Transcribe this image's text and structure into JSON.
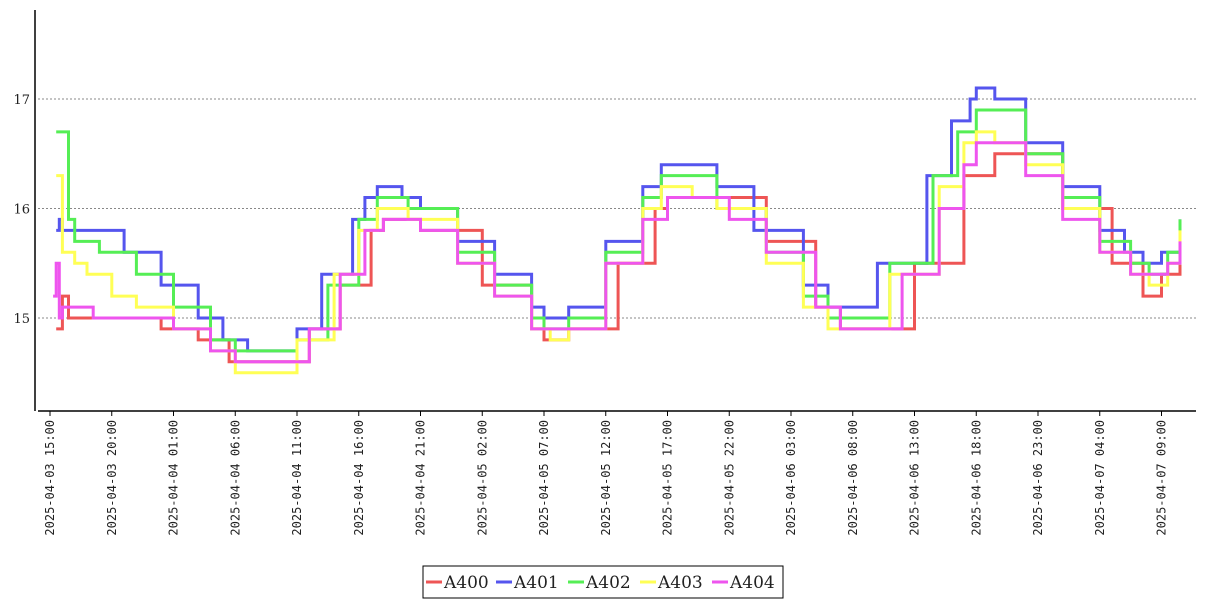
{
  "chart_data": {
    "type": "line",
    "title": "",
    "xlabel": "",
    "ylabel": "",
    "ylim": [
      14.2,
      17.8
    ],
    "x_range": [
      "2025-04-03 14:00",
      "2025-04-07 11:30"
    ],
    "y_ticks": [
      "15",
      "16",
      "17"
    ],
    "grid": "horizontal dotted",
    "legend": "bottom-center",
    "x_tick_labels": [
      "2025-04-03 15:00",
      "2025-04-03 20:00",
      "2025-04-04 01:00",
      "2025-04-04 06:00",
      "2025-04-04 11:00",
      "2025-04-04 16:00",
      "2025-04-04 21:00",
      "2025-04-05 02:00",
      "2025-04-05 07:00",
      "2025-04-05 12:00",
      "2025-04-05 17:00",
      "2025-04-05 22:00",
      "2025-04-06 03:00",
      "2025-04-06 08:00",
      "2025-04-06 13:00",
      "2025-04-06 18:00",
      "2025-04-06 23:00",
      "2025-04-07 04:00",
      "2025-04-07 09:00"
    ],
    "series": [
      {
        "name": "A400",
        "color": "#ee5555",
        "points": [
          [
            "2025-04-03 15:30",
            14.9
          ],
          [
            "2025-04-03 16:00",
            15.2
          ],
          [
            "2025-04-03 16:30",
            15.0
          ],
          [
            "2025-04-04 00:00",
            14.9
          ],
          [
            "2025-04-04 03:00",
            14.8
          ],
          [
            "2025-04-04 05:30",
            14.6
          ],
          [
            "2025-04-04 09:00",
            14.6
          ],
          [
            "2025-04-04 12:00",
            14.9
          ],
          [
            "2025-04-04 14:30",
            15.3
          ],
          [
            "2025-04-04 17:00",
            15.8
          ],
          [
            "2025-04-04 18:00",
            15.9
          ],
          [
            "2025-04-04 21:00",
            15.8
          ],
          [
            "2025-04-05 02:00",
            15.3
          ],
          [
            "2025-04-05 06:00",
            14.9
          ],
          [
            "2025-04-05 07:00",
            14.8
          ],
          [
            "2025-04-05 09:00",
            14.9
          ],
          [
            "2025-04-05 13:00",
            15.5
          ],
          [
            "2025-04-05 16:00",
            16.0
          ],
          [
            "2025-04-05 17:00",
            16.1
          ],
          [
            "2025-04-05 21:00",
            16.1
          ],
          [
            "2025-04-06 01:00",
            15.7
          ],
          [
            "2025-04-06 05:00",
            15.1
          ],
          [
            "2025-04-06 07:00",
            14.9
          ],
          [
            "2025-04-06 09:00",
            14.9
          ],
          [
            "2025-04-06 13:00",
            15.5
          ],
          [
            "2025-04-06 17:00",
            16.3
          ],
          [
            "2025-04-06 19:30",
            16.5
          ],
          [
            "2025-04-06 21:30",
            16.5
          ],
          [
            "2025-04-07 01:00",
            16.0
          ],
          [
            "2025-04-07 05:00",
            15.5
          ],
          [
            "2025-04-07 07:30",
            15.2
          ],
          [
            "2025-04-07 09:00",
            15.4
          ],
          [
            "2025-04-07 10:30",
            15.7
          ]
        ]
      },
      {
        "name": "A401",
        "color": "#5555ee",
        "points": [
          [
            "2025-04-03 15:30",
            15.8
          ],
          [
            "2025-04-03 15:45",
            15.9
          ],
          [
            "2025-04-03 16:00",
            15.8
          ],
          [
            "2025-04-03 18:00",
            15.8
          ],
          [
            "2025-04-03 21:00",
            15.6
          ],
          [
            "2025-04-04 00:00",
            15.3
          ],
          [
            "2025-04-04 03:00",
            15.0
          ],
          [
            "2025-04-04 05:00",
            14.8
          ],
          [
            "2025-04-04 07:00",
            14.7
          ],
          [
            "2025-04-04 09:00",
            14.7
          ],
          [
            "2025-04-04 11:00",
            14.9
          ],
          [
            "2025-04-04 13:00",
            15.4
          ],
          [
            "2025-04-04 15:30",
            15.9
          ],
          [
            "2025-04-04 16:30",
            16.1
          ],
          [
            "2025-04-04 17:30",
            16.2
          ],
          [
            "2025-04-04 19:30",
            16.1
          ],
          [
            "2025-04-04 21:00",
            16.0
          ],
          [
            "2025-04-05 00:00",
            15.7
          ],
          [
            "2025-04-05 03:00",
            15.4
          ],
          [
            "2025-04-05 06:00",
            15.1
          ],
          [
            "2025-04-05 07:00",
            15.0
          ],
          [
            "2025-04-05 09:00",
            15.1
          ],
          [
            "2025-04-05 12:00",
            15.7
          ],
          [
            "2025-04-05 15:00",
            16.2
          ],
          [
            "2025-04-05 16:30",
            16.4
          ],
          [
            "2025-04-05 19:00",
            16.4
          ],
          [
            "2025-04-05 21:00",
            16.2
          ],
          [
            "2025-04-06 00:00",
            15.8
          ],
          [
            "2025-04-06 04:00",
            15.3
          ],
          [
            "2025-04-06 06:00",
            15.1
          ],
          [
            "2025-04-06 07:30",
            15.1
          ],
          [
            "2025-04-06 10:00",
            15.5
          ],
          [
            "2025-04-06 14:00",
            16.3
          ],
          [
            "2025-04-06 16:00",
            16.8
          ],
          [
            "2025-04-06 17:30",
            17.0
          ],
          [
            "2025-04-06 18:00",
            17.1
          ],
          [
            "2025-04-06 19:30",
            17.0
          ],
          [
            "2025-04-06 22:00",
            16.6
          ],
          [
            "2025-04-07 01:00",
            16.2
          ],
          [
            "2025-04-07 04:00",
            15.8
          ],
          [
            "2025-04-07 06:00",
            15.6
          ],
          [
            "2025-04-07 07:30",
            15.5
          ],
          [
            "2025-04-07 09:00",
            15.6
          ],
          [
            "2025-04-07 10:30",
            15.9
          ]
        ]
      },
      {
        "name": "A402",
        "color": "#55ee55",
        "points": [
          [
            "2025-04-03 15:30",
            16.7
          ],
          [
            "2025-04-03 16:00",
            16.7
          ],
          [
            "2025-04-03 16:30",
            15.9
          ],
          [
            "2025-04-03 17:00",
            15.7
          ],
          [
            "2025-04-03 19:00",
            15.6
          ],
          [
            "2025-04-03 22:00",
            15.4
          ],
          [
            "2025-04-04 01:00",
            15.1
          ],
          [
            "2025-04-04 04:00",
            14.8
          ],
          [
            "2025-04-04 06:00",
            14.7
          ],
          [
            "2025-04-04 09:00",
            14.7
          ],
          [
            "2025-04-04 11:00",
            14.8
          ],
          [
            "2025-04-04 13:30",
            15.3
          ],
          [
            "2025-04-04 16:00",
            15.9
          ],
          [
            "2025-04-04 17:30",
            16.1
          ],
          [
            "2025-04-04 20:00",
            16.0
          ],
          [
            "2025-04-05 00:00",
            15.6
          ],
          [
            "2025-04-05 03:00",
            15.3
          ],
          [
            "2025-04-05 06:00",
            15.0
          ],
          [
            "2025-04-05 07:00",
            14.9
          ],
          [
            "2025-04-05 09:00",
            15.0
          ],
          [
            "2025-04-05 12:00",
            15.6
          ],
          [
            "2025-04-05 15:00",
            16.1
          ],
          [
            "2025-04-05 16:30",
            16.3
          ],
          [
            "2025-04-05 18:30",
            16.3
          ],
          [
            "2025-04-05 21:00",
            16.0
          ],
          [
            "2025-04-06 01:00",
            15.6
          ],
          [
            "2025-04-06 04:00",
            15.2
          ],
          [
            "2025-04-06 06:00",
            15.0
          ],
          [
            "2025-04-06 08:00",
            15.0
          ],
          [
            "2025-04-06 11:00",
            15.5
          ],
          [
            "2025-04-06 14:30",
            16.3
          ],
          [
            "2025-04-06 16:30",
            16.7
          ],
          [
            "2025-04-06 18:00",
            16.9
          ],
          [
            "2025-04-06 19:30",
            16.9
          ],
          [
            "2025-04-06 22:00",
            16.5
          ],
          [
            "2025-04-07 01:00",
            16.1
          ],
          [
            "2025-04-07 04:00",
            15.7
          ],
          [
            "2025-04-07 06:30",
            15.5
          ],
          [
            "2025-04-07 08:00",
            15.4
          ],
          [
            "2025-04-07 09:30",
            15.6
          ],
          [
            "2025-04-07 10:30",
            15.9
          ]
        ]
      },
      {
        "name": "A403",
        "color": "#ffff55",
        "points": [
          [
            "2025-04-03 15:30",
            16.3
          ],
          [
            "2025-04-03 16:00",
            15.6
          ],
          [
            "2025-04-03 17:00",
            15.5
          ],
          [
            "2025-04-03 18:00",
            15.4
          ],
          [
            "2025-04-03 20:00",
            15.2
          ],
          [
            "2025-04-03 22:00",
            15.1
          ],
          [
            "2025-04-04 01:00",
            14.9
          ],
          [
            "2025-04-04 04:00",
            14.7
          ],
          [
            "2025-04-04 06:00",
            14.5
          ],
          [
            "2025-04-04 08:00",
            14.5
          ],
          [
            "2025-04-04 11:00",
            14.8
          ],
          [
            "2025-04-04 14:00",
            15.4
          ],
          [
            "2025-04-04 16:00",
            15.8
          ],
          [
            "2025-04-04 17:30",
            16.0
          ],
          [
            "2025-04-04 20:00",
            15.9
          ],
          [
            "2025-04-05 00:00",
            15.5
          ],
          [
            "2025-04-05 03:00",
            15.2
          ],
          [
            "2025-04-05 06:00",
            14.9
          ],
          [
            "2025-04-05 07:30",
            14.8
          ],
          [
            "2025-04-05 09:00",
            14.9
          ],
          [
            "2025-04-05 12:00",
            15.5
          ],
          [
            "2025-04-05 15:00",
            16.0
          ],
          [
            "2025-04-05 16:30",
            16.2
          ],
          [
            "2025-04-05 19:00",
            16.1
          ],
          [
            "2025-04-05 21:00",
            16.0
          ],
          [
            "2025-04-06 01:00",
            15.5
          ],
          [
            "2025-04-06 04:00",
            15.1
          ],
          [
            "2025-04-06 06:00",
            14.9
          ],
          [
            "2025-04-06 08:00",
            14.9
          ],
          [
            "2025-04-06 11:00",
            15.4
          ],
          [
            "2025-04-06 15:00",
            16.2
          ],
          [
            "2025-04-06 17:00",
            16.6
          ],
          [
            "2025-04-06 18:00",
            16.7
          ],
          [
            "2025-04-06 19:30",
            16.6
          ],
          [
            "2025-04-06 22:00",
            16.4
          ],
          [
            "2025-04-07 01:00",
            16.0
          ],
          [
            "2025-04-07 04:00",
            15.6
          ],
          [
            "2025-04-07 06:30",
            15.4
          ],
          [
            "2025-04-07 08:00",
            15.3
          ],
          [
            "2025-04-07 09:30",
            15.5
          ],
          [
            "2025-04-07 10:30",
            15.8
          ]
        ]
      },
      {
        "name": "A404",
        "color": "#ee55ee",
        "points": [
          [
            "2025-04-03 15:15",
            15.2
          ],
          [
            "2025-04-03 15:30",
            15.5
          ],
          [
            "2025-04-03 15:45",
            15.0
          ],
          [
            "2025-04-03 16:00",
            15.1
          ],
          [
            "2025-04-03 18:00",
            15.1
          ],
          [
            "2025-04-03 18:30",
            15.0
          ],
          [
            "2025-04-04 01:00",
            14.9
          ],
          [
            "2025-04-04 04:00",
            14.7
          ],
          [
            "2025-04-04 06:00",
            14.6
          ],
          [
            "2025-04-04 09:00",
            14.6
          ],
          [
            "2025-04-04 12:00",
            14.9
          ],
          [
            "2025-04-04 14:30",
            15.4
          ],
          [
            "2025-04-04 16:30",
            15.8
          ],
          [
            "2025-04-04 18:00",
            15.9
          ],
          [
            "2025-04-04 21:00",
            15.8
          ],
          [
            "2025-04-05 00:00",
            15.5
          ],
          [
            "2025-04-05 03:00",
            15.2
          ],
          [
            "2025-04-05 06:00",
            14.9
          ],
          [
            "2025-04-05 07:00",
            14.9
          ],
          [
            "2025-04-05 09:00",
            14.9
          ],
          [
            "2025-04-05 12:00",
            15.5
          ],
          [
            "2025-04-05 15:00",
            15.9
          ],
          [
            "2025-04-05 17:00",
            16.1
          ],
          [
            "2025-04-05 20:00",
            16.1
          ],
          [
            "2025-04-05 22:00",
            15.9
          ],
          [
            "2025-04-06 01:00",
            15.6
          ],
          [
            "2025-04-06 05:00",
            15.1
          ],
          [
            "2025-04-06 07:00",
            14.9
          ],
          [
            "2025-04-06 09:00",
            14.9
          ],
          [
            "2025-04-06 12:00",
            15.4
          ],
          [
            "2025-04-06 15:00",
            16.0
          ],
          [
            "2025-04-06 17:00",
            16.4
          ],
          [
            "2025-04-06 18:00",
            16.6
          ],
          [
            "2025-04-06 19:30",
            16.6
          ],
          [
            "2025-04-06 22:00",
            16.3
          ],
          [
            "2025-04-07 01:00",
            15.9
          ],
          [
            "2025-04-07 04:00",
            15.6
          ],
          [
            "2025-04-07 06:30",
            15.4
          ],
          [
            "2025-04-07 08:00",
            15.4
          ],
          [
            "2025-04-07 09:30",
            15.5
          ],
          [
            "2025-04-07 10:30",
            15.7
          ]
        ]
      }
    ]
  }
}
